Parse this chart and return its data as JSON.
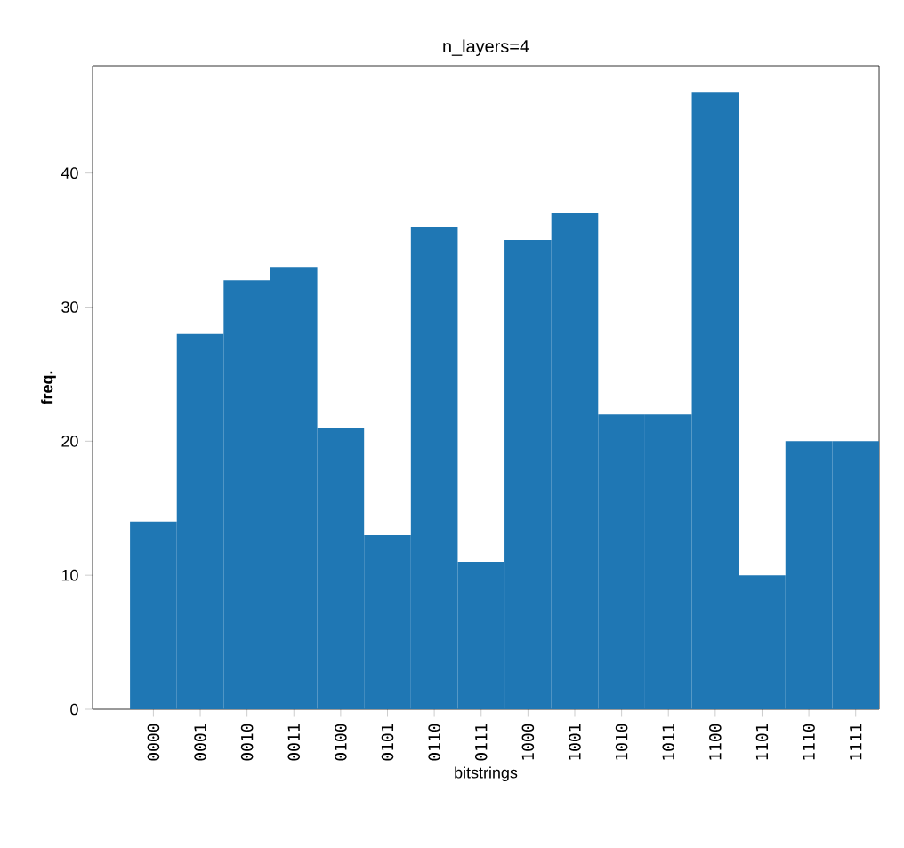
{
  "chart_data": {
    "type": "bar",
    "title": "n_layers=4",
    "xlabel": "bitstrings",
    "ylabel": "freq.",
    "categories": [
      "0000",
      "0001",
      "0010",
      "0011",
      "0100",
      "0101",
      "0110",
      "0111",
      "1000",
      "1001",
      "1010",
      "1011",
      "1100",
      "1101",
      "1110",
      "1111"
    ],
    "values": [
      14,
      28,
      32,
      33,
      21,
      13,
      36,
      11,
      35,
      37,
      22,
      22,
      46,
      10,
      20,
      20
    ],
    "color": "#1f77b4",
    "ylim": [
      0,
      48
    ],
    "yticks": [
      0,
      10,
      20,
      30,
      40
    ]
  }
}
